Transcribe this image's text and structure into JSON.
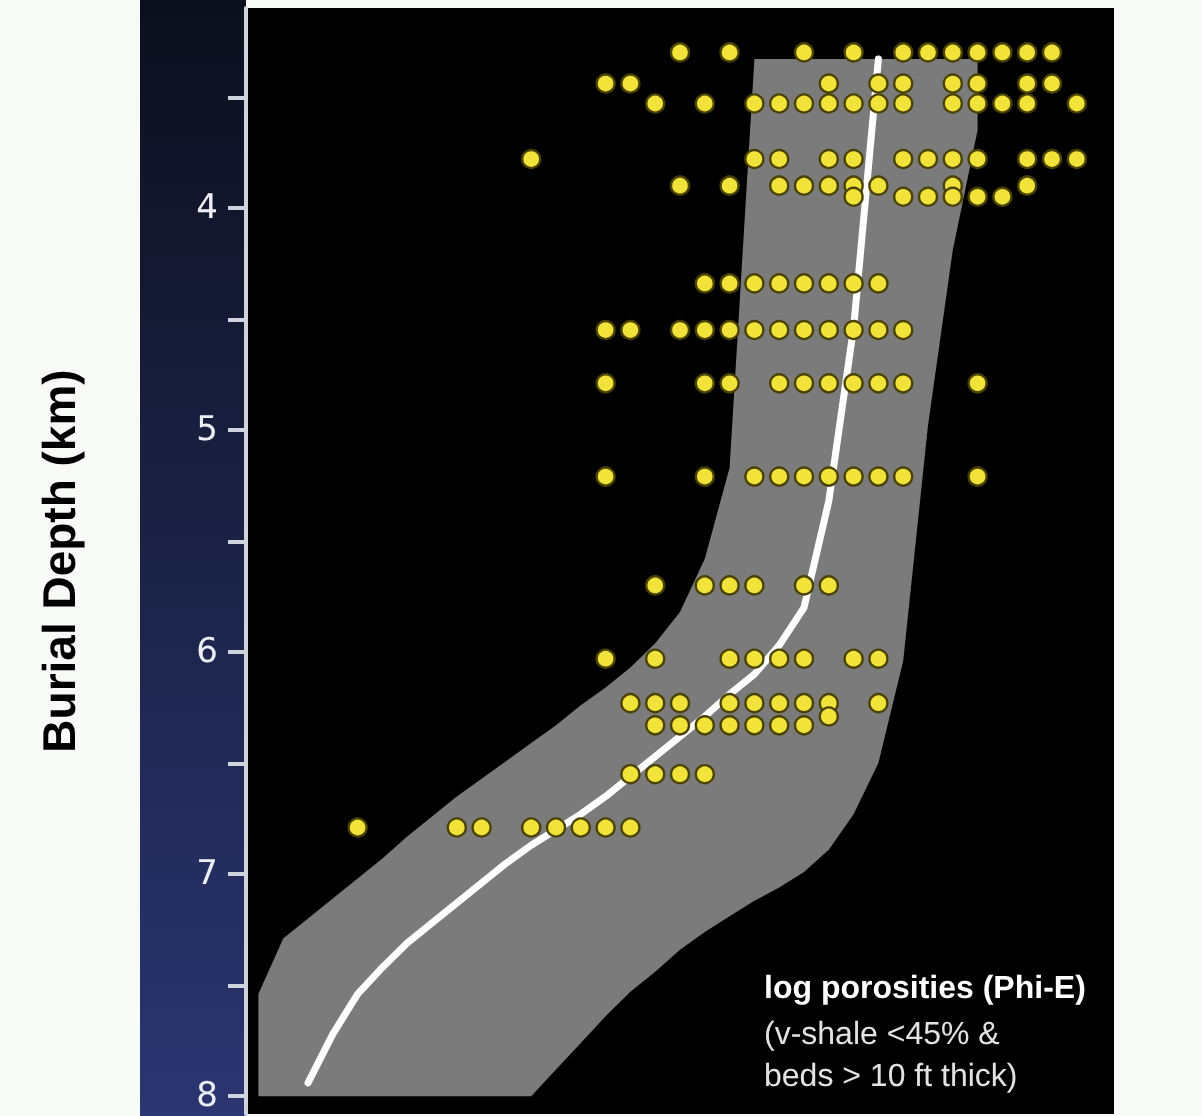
{
  "chart_data": {
    "type": "scatter",
    "ylabel": "Burial Depth (km)",
    "annotations": [
      "log porosities (Phi-E)",
      "(v-shale <45% & beds > 10 ft thick)"
    ],
    "categories": [
      null,
      null,
      null,
      null,
      null,
      null,
      null,
      null,
      null,
      null,
      null,
      null,
      null,
      null,
      null,
      null,
      null,
      null,
      null,
      null,
      null,
      null,
      null,
      null,
      null,
      null,
      null,
      null,
      null,
      null,
      null,
      null,
      null,
      null,
      null
    ],
    "ylim": [
      8.08,
      3.1
    ],
    "yticks": [
      {
        "value": 3.5,
        "label": null
      },
      4,
      {
        "value": 4.5,
        "label": null
      },
      5,
      {
        "value": 5.5,
        "label": null
      },
      6,
      {
        "value": 6.5,
        "label": null
      },
      7,
      {
        "value": 7.5,
        "label": null
      },
      8
    ],
    "tick_labels": "y",
    "marker": "circle",
    "series": [
      {
        "type": "line",
        "color": "#ffffff",
        "line_style": "solid",
        "marker": "none",
        "values": [
          null,
          null,
          7.94,
          7.72,
          7.54,
          7.42,
          7.31,
          7.22,
          7.13,
          7.04,
          6.95,
          6.87,
          6.8,
          6.73,
          6.65,
          6.56,
          6.47,
          6.38,
          6.29,
          6.19,
          6.1,
          5.97,
          5.8,
          5.32,
          4.54,
          3.33,
          null,
          null,
          null,
          null,
          null,
          null,
          null,
          null,
          null
        ],
        "lower": [
          7.54,
          7.29,
          7.2,
          7.11,
          7.02,
          6.93,
          6.83,
          6.74,
          6.65,
          6.57,
          6.49,
          6.41,
          6.33,
          6.24,
          6.16,
          6.07,
          5.96,
          5.82,
          5.58,
          5.17,
          3.33,
          3.33,
          3.33,
          3.33,
          3.33,
          3.33,
          3.33,
          3.33,
          3.33,
          3.33,
          null,
          null,
          null,
          null,
          null
        ],
        "upper": [
          8.0,
          8.0,
          8.0,
          8.0,
          8.0,
          8.0,
          8.0,
          8.0,
          8.0,
          8.0,
          8.0,
          8.0,
          7.88,
          7.76,
          7.64,
          7.53,
          7.44,
          7.34,
          7.26,
          7.19,
          7.12,
          7.06,
          6.99,
          6.89,
          6.73,
          6.5,
          6.04,
          4.98,
          4.19,
          3.65,
          null,
          null,
          null,
          null,
          null
        ]
      },
      {
        "color": "#f2e33a",
        "values": [
          null,
          null,
          null,
          null,
          null,
          null,
          null,
          null,
          null,
          null,
          null,
          null,
          null,
          null,
          null,
          null,
          null,
          3.3,
          null,
          3.3,
          null,
          null,
          3.3,
          null,
          3.3,
          null,
          3.3,
          3.3,
          3.3,
          3.3,
          3.3,
          3.3,
          3.3,
          null,
          null
        ]
      },
      {
        "color": "#f2e33a",
        "values": [
          null,
          null,
          null,
          null,
          null,
          null,
          null,
          null,
          null,
          null,
          null,
          null,
          null,
          null,
          3.44,
          3.44,
          null,
          null,
          null,
          null,
          null,
          null,
          null,
          3.44,
          null,
          3.44,
          3.44,
          null,
          3.44,
          3.44,
          null,
          3.44,
          3.44,
          null,
          null
        ]
      },
      {
        "color": "#f2e33a",
        "values": [
          null,
          null,
          null,
          null,
          null,
          null,
          null,
          null,
          null,
          null,
          null,
          null,
          null,
          null,
          null,
          null,
          3.53,
          null,
          3.53,
          null,
          3.53,
          3.53,
          3.53,
          3.53,
          3.53,
          3.53,
          3.53,
          null,
          3.53,
          3.53,
          3.53,
          3.53,
          null,
          3.53,
          null
        ]
      },
      {
        "color": "#f2e33a",
        "values": [
          null,
          null,
          null,
          null,
          null,
          null,
          null,
          null,
          null,
          null,
          null,
          3.78,
          null,
          null,
          null,
          null,
          null,
          null,
          null,
          null,
          3.78,
          3.78,
          null,
          3.78,
          3.78,
          null,
          3.78,
          3.78,
          3.78,
          3.78,
          null,
          3.78,
          3.78,
          3.78,
          null
        ]
      },
      {
        "color": "#f2e33a",
        "values": [
          null,
          null,
          null,
          null,
          null,
          null,
          null,
          null,
          null,
          null,
          null,
          null,
          null,
          null,
          null,
          null,
          null,
          3.9,
          null,
          3.9,
          null,
          3.9,
          3.9,
          3.9,
          3.9,
          3.9,
          null,
          null,
          3.9,
          null,
          null,
          3.9,
          null,
          null,
          null
        ]
      },
      {
        "color": "#f2e33a",
        "values": [
          null,
          null,
          null,
          null,
          null,
          null,
          null,
          null,
          null,
          null,
          null,
          null,
          null,
          null,
          null,
          null,
          null,
          null,
          null,
          null,
          null,
          null,
          null,
          null,
          3.95,
          null,
          3.95,
          3.95,
          3.95,
          3.95,
          3.95,
          null,
          null,
          null,
          null
        ]
      },
      {
        "color": "#f2e33a",
        "values": [
          null,
          null,
          null,
          null,
          null,
          null,
          null,
          null,
          null,
          null,
          null,
          null,
          null,
          null,
          null,
          null,
          null,
          null,
          4.34,
          4.34,
          4.34,
          4.34,
          4.34,
          4.34,
          4.34,
          4.34,
          null,
          null,
          null,
          null,
          null,
          null,
          null,
          null,
          null
        ]
      },
      {
        "color": "#f2e33a",
        "values": [
          null,
          null,
          null,
          null,
          null,
          null,
          null,
          null,
          null,
          null,
          null,
          null,
          null,
          null,
          4.55,
          4.55,
          null,
          4.55,
          4.55,
          4.55,
          4.55,
          4.55,
          4.55,
          4.55,
          4.55,
          4.55,
          4.55,
          null,
          null,
          null,
          null,
          null,
          null,
          null,
          null
        ]
      },
      {
        "color": "#f2e33a",
        "values": [
          null,
          null,
          null,
          null,
          null,
          null,
          null,
          null,
          null,
          null,
          null,
          null,
          null,
          null,
          4.79,
          null,
          null,
          null,
          4.79,
          4.79,
          null,
          4.79,
          4.79,
          4.79,
          4.79,
          4.79,
          4.79,
          null,
          null,
          4.79,
          null,
          null,
          null,
          null,
          null
        ]
      },
      {
        "color": "#f2e33a",
        "values": [
          null,
          null,
          null,
          null,
          null,
          null,
          null,
          null,
          null,
          null,
          null,
          null,
          null,
          null,
          5.21,
          null,
          null,
          null,
          5.21,
          null,
          5.21,
          5.21,
          5.21,
          5.21,
          5.21,
          5.21,
          5.21,
          null,
          null,
          5.21,
          null,
          null,
          null,
          null,
          null
        ]
      },
      {
        "color": "#f2e33a",
        "values": [
          null,
          null,
          null,
          null,
          null,
          null,
          null,
          null,
          null,
          null,
          null,
          null,
          null,
          null,
          null,
          null,
          5.7,
          null,
          5.7,
          5.7,
          5.7,
          null,
          5.7,
          5.7,
          null,
          null,
          null,
          null,
          null,
          null,
          null,
          null,
          null,
          null,
          null
        ]
      },
      {
        "color": "#f2e33a",
        "values": [
          null,
          null,
          null,
          null,
          null,
          null,
          null,
          null,
          null,
          null,
          null,
          null,
          null,
          null,
          6.03,
          null,
          6.03,
          null,
          null,
          6.03,
          6.03,
          6.03,
          6.03,
          null,
          6.03,
          6.03,
          null,
          null,
          null,
          null,
          null,
          null,
          null,
          null,
          null
        ]
      },
      {
        "color": "#f2e33a",
        "values": [
          null,
          null,
          null,
          null,
          null,
          null,
          null,
          null,
          null,
          null,
          null,
          null,
          null,
          null,
          null,
          6.23,
          6.23,
          6.23,
          null,
          6.23,
          6.23,
          6.23,
          6.23,
          6.23,
          null,
          6.23,
          null,
          null,
          null,
          null,
          null,
          null,
          null,
          null,
          null
        ]
      },
      {
        "color": "#f2e33a",
        "values": [
          null,
          null,
          null,
          null,
          null,
          null,
          null,
          null,
          null,
          null,
          null,
          null,
          null,
          null,
          null,
          null,
          6.33,
          6.33,
          6.33,
          6.33,
          6.33,
          6.33,
          6.33,
          6.29,
          null,
          null,
          null,
          null,
          null,
          null,
          null,
          null,
          null,
          null,
          null
        ]
      },
      {
        "color": "#f2e33a",
        "values": [
          null,
          null,
          null,
          null,
          null,
          null,
          null,
          null,
          null,
          null,
          null,
          null,
          null,
          null,
          null,
          6.55,
          6.55,
          6.55,
          6.55,
          null,
          null,
          null,
          null,
          null,
          null,
          null,
          null,
          null,
          null,
          null,
          null,
          null,
          null,
          null,
          null
        ]
      },
      {
        "color": "#f2e33a",
        "values": [
          null,
          null,
          null,
          null,
          6.79,
          null,
          null,
          null,
          6.79,
          6.79,
          null,
          6.79,
          6.79,
          6.79,
          6.79,
          6.79,
          null,
          null,
          null,
          null,
          null,
          null,
          null,
          null,
          null,
          null,
          null,
          null,
          null,
          null,
          null,
          null,
          null,
          null,
          null
        ]
      }
    ]
  }
}
